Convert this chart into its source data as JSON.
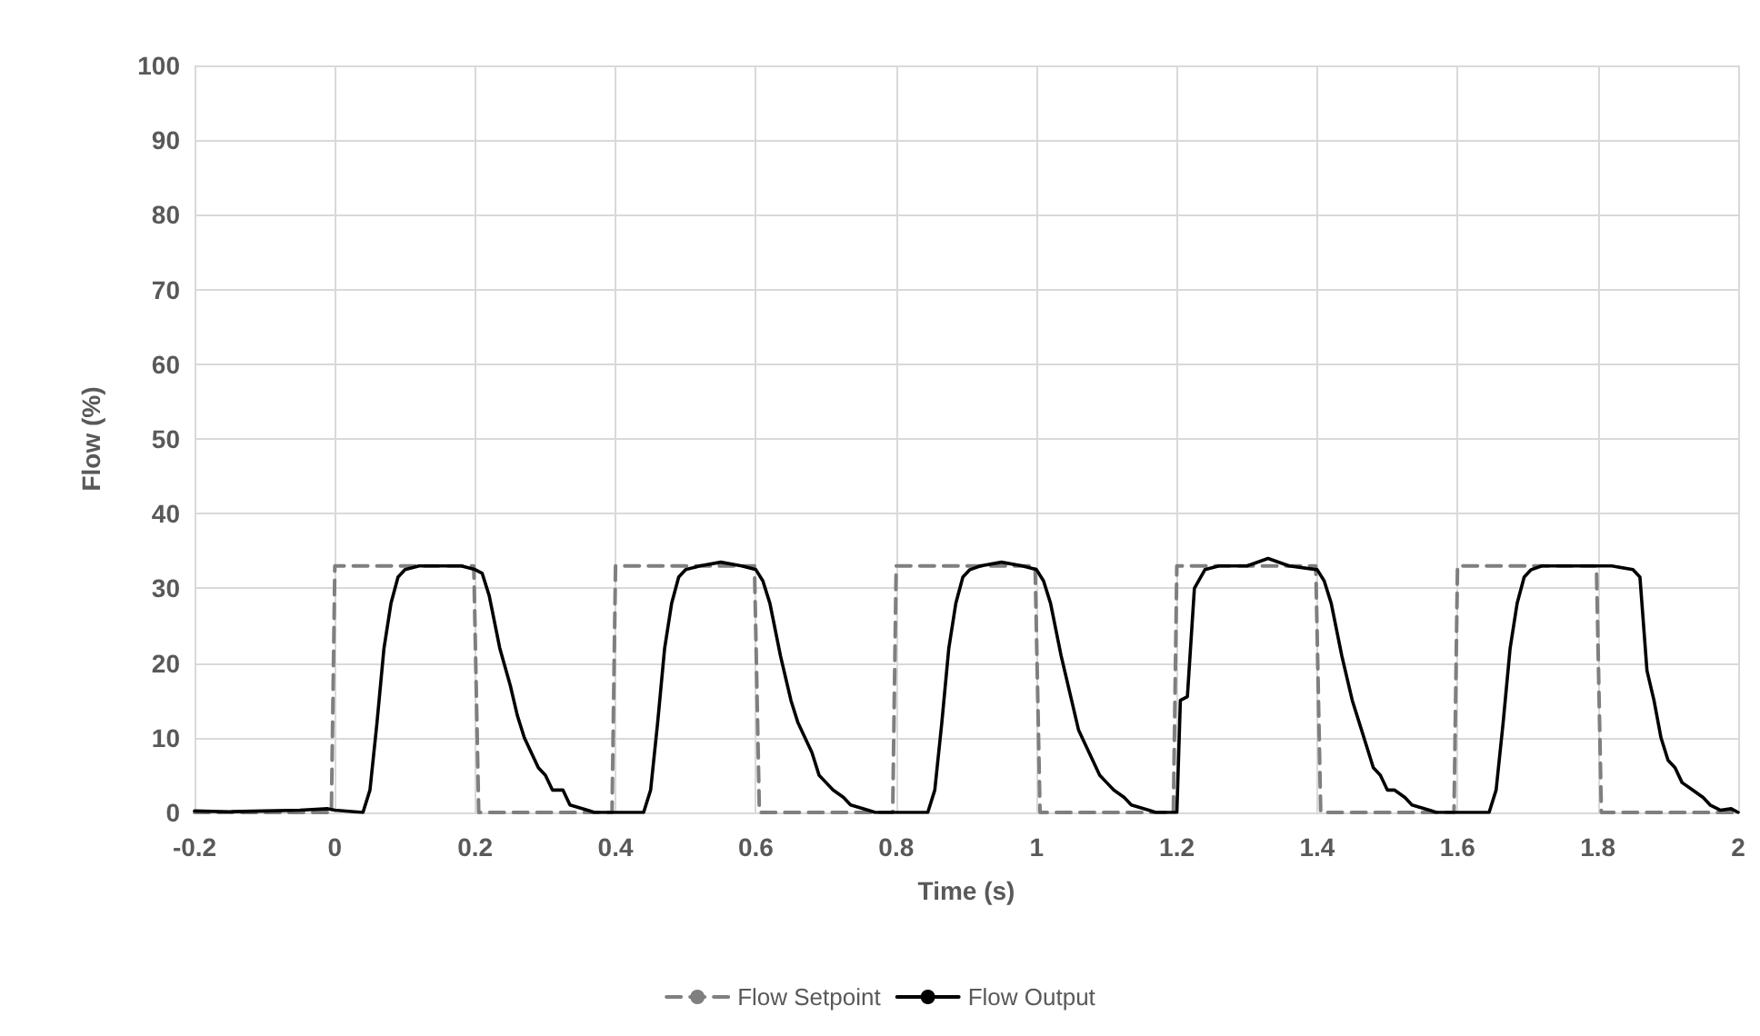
{
  "chart_data": {
    "type": "line",
    "xlabel": "Time (s)",
    "ylabel": "Flow (%)",
    "xlim": [
      -0.2,
      2
    ],
    "xticks": [
      -0.2,
      0,
      0.2,
      0.4,
      0.6,
      0.8,
      1,
      1.2,
      1.4,
      1.6,
      1.8,
      2
    ],
    "ylim": [
      0,
      100
    ],
    "yticks": [
      0,
      10,
      20,
      30,
      40,
      50,
      60,
      70,
      80,
      90,
      100
    ],
    "grid": true,
    "legend": "bottom",
    "marker": "none",
    "series": [
      {
        "name": "Flow Setpoint",
        "color": "#7f7f7f",
        "line_style": "dashed",
        "x": [
          -0.2,
          -0.005,
          0,
          0.198,
          0.205,
          0.395,
          0.4,
          0.598,
          0.605,
          0.795,
          0.8,
          0.998,
          1.005,
          1.195,
          1.2,
          1.398,
          1.405,
          1.595,
          1.6,
          1.798,
          1.805,
          2
        ],
        "values": [
          0,
          0,
          33,
          33,
          0,
          0,
          33,
          33,
          0,
          0,
          33,
          33,
          0,
          0,
          33,
          33,
          0,
          0,
          33,
          33,
          0,
          0
        ]
      },
      {
        "name": "Flow Output",
        "color": "#000000",
        "line_style": "solid",
        "x": [
          -0.2,
          -0.15,
          -0.1,
          -0.05,
          -0.01,
          0,
          0.04,
          0.05,
          0.06,
          0.07,
          0.08,
          0.09,
          0.1,
          0.12,
          0.15,
          0.18,
          0.2,
          0.21,
          0.22,
          0.235,
          0.25,
          0.26,
          0.27,
          0.28,
          0.29,
          0.3,
          0.31,
          0.325,
          0.335,
          0.36,
          0.37,
          0.44,
          0.45,
          0.46,
          0.47,
          0.48,
          0.49,
          0.5,
          0.52,
          0.55,
          0.58,
          0.6,
          0.61,
          0.62,
          0.635,
          0.65,
          0.66,
          0.67,
          0.68,
          0.69,
          0.7,
          0.71,
          0.725,
          0.735,
          0.76,
          0.77,
          0.845,
          0.855,
          0.865,
          0.875,
          0.885,
          0.895,
          0.905,
          0.92,
          0.95,
          0.98,
          1,
          1.01,
          1.02,
          1.035,
          1.05,
          1.06,
          1.07,
          1.08,
          1.09,
          1.1,
          1.11,
          1.125,
          1.135,
          1.16,
          1.17,
          1.2,
          1.205,
          1.215,
          1.225,
          1.24,
          1.26,
          1.3,
          1.33,
          1.36,
          1.4,
          1.41,
          1.42,
          1.435,
          1.45,
          1.46,
          1.47,
          1.48,
          1.49,
          1.5,
          1.51,
          1.525,
          1.535,
          1.56,
          1.57,
          1.645,
          1.655,
          1.665,
          1.675,
          1.685,
          1.695,
          1.705,
          1.72,
          1.75,
          1.78,
          1.82,
          1.85,
          1.86,
          1.87,
          1.88,
          1.89,
          1.9,
          1.91,
          1.92,
          1.935,
          1.95,
          1.96,
          1.975,
          1.99,
          2
        ],
        "values": [
          0.2,
          0.1,
          0.2,
          0.3,
          0.5,
          0.3,
          0,
          3,
          12,
          22,
          28,
          31.5,
          32.5,
          33,
          33,
          33,
          32.5,
          32,
          29,
          22,
          17,
          13,
          10,
          8,
          6,
          5,
          3,
          3,
          1,
          0.3,
          0,
          0,
          3,
          12,
          22,
          28,
          31.5,
          32.5,
          33,
          33.5,
          33,
          32.5,
          31,
          28,
          21,
          15,
          12,
          10,
          8,
          5,
          4,
          3,
          2,
          1,
          0.3,
          0,
          0,
          3,
          12,
          22,
          28,
          31.5,
          32.5,
          33,
          33.5,
          33,
          32.5,
          31,
          28,
          21,
          15,
          11,
          9,
          7,
          5,
          4,
          3,
          2,
          1,
          0.3,
          0,
          0,
          15,
          15.5,
          30,
          32.5,
          33,
          33,
          34,
          33,
          32.5,
          31,
          28,
          21,
          15,
          12,
          9,
          6,
          5,
          3,
          3,
          2,
          1,
          0.3,
          0,
          0,
          3,
          12,
          22,
          28,
          31.5,
          32.5,
          33,
          33,
          33,
          33,
          32.5,
          31.5,
          19,
          15,
          10,
          7,
          6,
          4,
          3,
          2,
          1,
          0.3,
          0.5,
          0
        ]
      }
    ]
  }
}
